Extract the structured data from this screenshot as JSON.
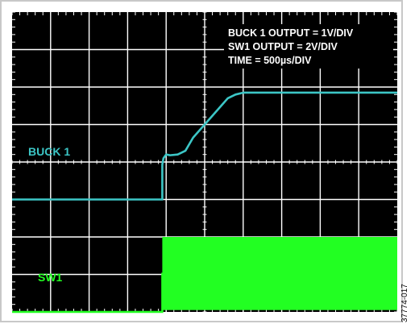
{
  "chart_data": {
    "type": "line",
    "title": "",
    "xlabel": "",
    "ylabel": "",
    "legend_placement": "top-right",
    "grid": true,
    "colors": {
      "background": "#000000",
      "grid": "#ffffff",
      "buck1": "#3cc6c6",
      "sw1": "#22ff22",
      "frame": "#c8c8c8"
    },
    "annotations": [
      "BUCK 1 OUTPUT = 1V/DIV",
      "SW1 OUTPUT = 2V/DIV",
      "TIME = 500µs/DIV"
    ],
    "x_divisions": 10,
    "y_divisions": 8,
    "series": [
      {
        "name": "BUCK 1",
        "x_div": [
          0,
          3.9,
          3.9,
          3.93,
          4.0,
          4.1,
          4.3,
          4.5,
          4.7,
          5.0,
          5.3,
          5.6,
          5.8,
          6.0,
          6.3,
          10
        ],
        "y_div_from_top": [
          5.0,
          5.0,
          4.07,
          3.9,
          3.8,
          3.82,
          3.8,
          3.7,
          3.35,
          3.0,
          2.65,
          2.3,
          2.2,
          2.15,
          2.15,
          2.15
        ]
      },
      {
        "name": "SW1",
        "x_div": [
          0,
          3.9,
          3.9,
          10
        ],
        "y_div_from_top": [
          8.0,
          8.0,
          6.98,
          6.98
        ],
        "band_low_div_from_top": 7.95,
        "band_high_div_from_top": 6.0
      }
    ]
  },
  "labels": {
    "buck1": "BUCK 1",
    "sw1": "SW1"
  },
  "figure_id": "37774-017"
}
